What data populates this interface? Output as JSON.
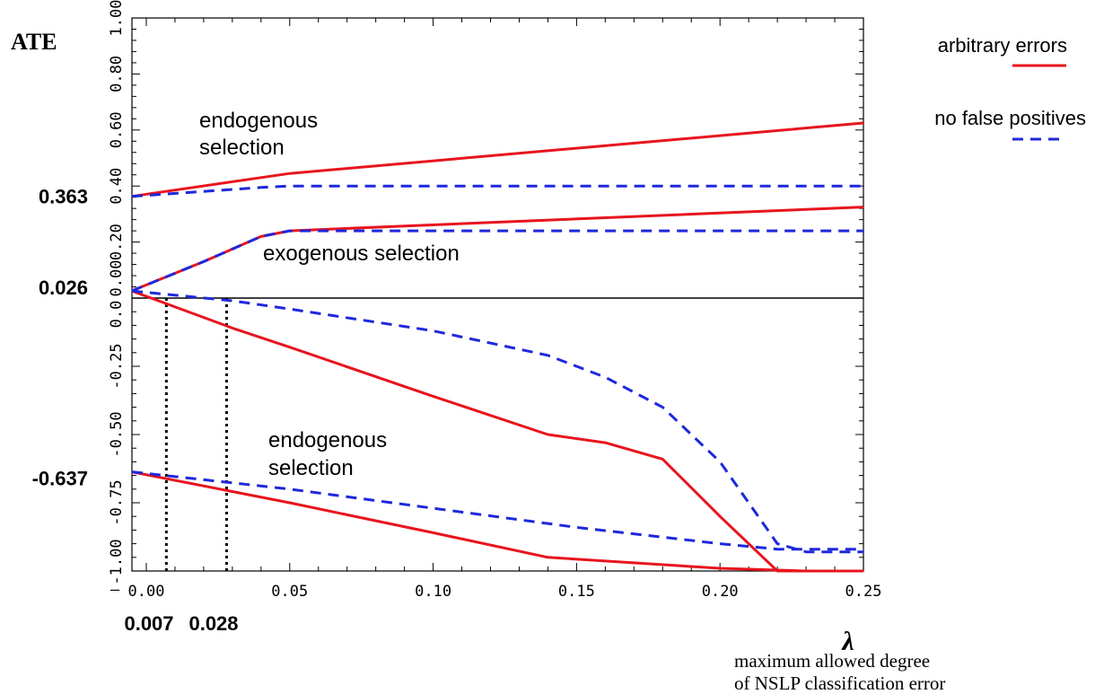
{
  "chart_data": {
    "type": "line",
    "ylabel": "ATE",
    "xlabel_symbol": "λ",
    "xlabel_line1": "maximum allowed degree",
    "xlabel_line2": "of NSLP classification error",
    "xlim": [
      -0.005,
      0.25
    ],
    "x_ticks": [
      "0.00",
      "0.05",
      "0.10",
      "0.15",
      "0.20",
      "0.25"
    ],
    "x_tick_values": [
      0,
      0.05,
      0.1,
      0.15,
      0.2,
      0.25
    ],
    "upper_panel": {
      "ylim": [
        0,
        1
      ],
      "y_ticks": [
        "0.00",
        "0.20",
        "0.40",
        "0.60",
        "0.80",
        "1.00"
      ],
      "y_tick_values": [
        0,
        0.2,
        0.4,
        0.6,
        0.8,
        1.0
      ],
      "series": [
        {
          "name": "arbitrary errors",
          "style": "solid",
          "group": "endogenous selection upper",
          "x": [
            -0.005,
            0.04,
            0.05,
            0.25
          ],
          "y": [
            0.363,
            0.43,
            0.445,
            0.625
          ]
        },
        {
          "name": "no false positives",
          "style": "dashed",
          "group": "endogenous selection upper",
          "x": [
            -0.005,
            0.04,
            0.05,
            0.25
          ],
          "y": [
            0.363,
            0.395,
            0.4,
            0.4
          ]
        },
        {
          "name": "arbitrary errors",
          "style": "solid",
          "group": "exogenous selection upper",
          "x": [
            -0.005,
            0.02,
            0.04,
            0.05,
            0.25
          ],
          "y": [
            0.026,
            0.13,
            0.22,
            0.24,
            0.325
          ]
        },
        {
          "name": "no false positives",
          "style": "dashed",
          "group": "exogenous selection upper",
          "x": [
            -0.005,
            0.02,
            0.04,
            0.05,
            0.25
          ],
          "y": [
            0.026,
            0.13,
            0.22,
            0.24,
            0.24
          ]
        }
      ]
    },
    "lower_panel": {
      "ylim": [
        -1,
        0
      ],
      "y_ticks": [
        "0.0",
        "-0.25",
        "-0.50",
        "-0.75",
        "-1.00"
      ],
      "y_tick_values": [
        0,
        -0.25,
        -0.5,
        -0.75,
        -1.0
      ],
      "series": [
        {
          "name": "arbitrary errors",
          "style": "solid",
          "group": "exogenous selection lower",
          "x": [
            -0.005,
            0.03,
            0.05,
            0.1,
            0.14,
            0.16,
            0.18,
            0.2,
            0.22,
            0.25
          ],
          "y": [
            0.026,
            -0.11,
            -0.18,
            -0.36,
            -0.5,
            -0.53,
            -0.59,
            -0.8,
            -1.0,
            -1.0
          ]
        },
        {
          "name": "no false positives",
          "style": "dashed",
          "group": "exogenous selection lower",
          "x": [
            -0.005,
            0.03,
            0.05,
            0.1,
            0.14,
            0.16,
            0.18,
            0.2,
            0.22,
            0.23,
            0.25
          ],
          "y": [
            0.026,
            -0.01,
            -0.04,
            -0.12,
            -0.21,
            -0.29,
            -0.4,
            -0.6,
            -0.9,
            -0.93,
            -0.93
          ]
        },
        {
          "name": "arbitrary errors",
          "style": "solid",
          "group": "endogenous selection lower",
          "x": [
            -0.005,
            0.05,
            0.1,
            0.14,
            0.2,
            0.23,
            0.25
          ],
          "y": [
            -0.637,
            -0.75,
            -0.86,
            -0.95,
            -0.99,
            -1.0,
            -1.0
          ]
        },
        {
          "name": "no false positives",
          "style": "dashed",
          "group": "endogenous selection lower",
          "x": [
            -0.005,
            0.05,
            0.1,
            0.15,
            0.2,
            0.22,
            0.25
          ],
          "y": [
            -0.637,
            -0.7,
            -0.77,
            -0.84,
            -0.9,
            -0.92,
            -0.92
          ]
        }
      ]
    },
    "vertical_markers": [
      0.007,
      0.028
    ],
    "marker_labels": [
      "0.007",
      "0.028"
    ],
    "highlight_values": [
      "0.363",
      "0.026",
      "-0.637"
    ],
    "annotations": {
      "endo_upper_1": "endogenous",
      "endo_upper_2": "selection",
      "exo": "exogenous selection",
      "endo_lower_1": "endogenous",
      "endo_lower_2": "selection"
    },
    "legend": [
      {
        "label": "arbitrary errors",
        "color": "#e8141e",
        "style": "solid"
      },
      {
        "label": "no false positives",
        "color": "#1e28dc",
        "style": "dashed"
      }
    ],
    "colors": {
      "solid": "#e8141e",
      "dashed": "#1e28dc",
      "axis": "#000000",
      "markers": "#000000"
    }
  }
}
